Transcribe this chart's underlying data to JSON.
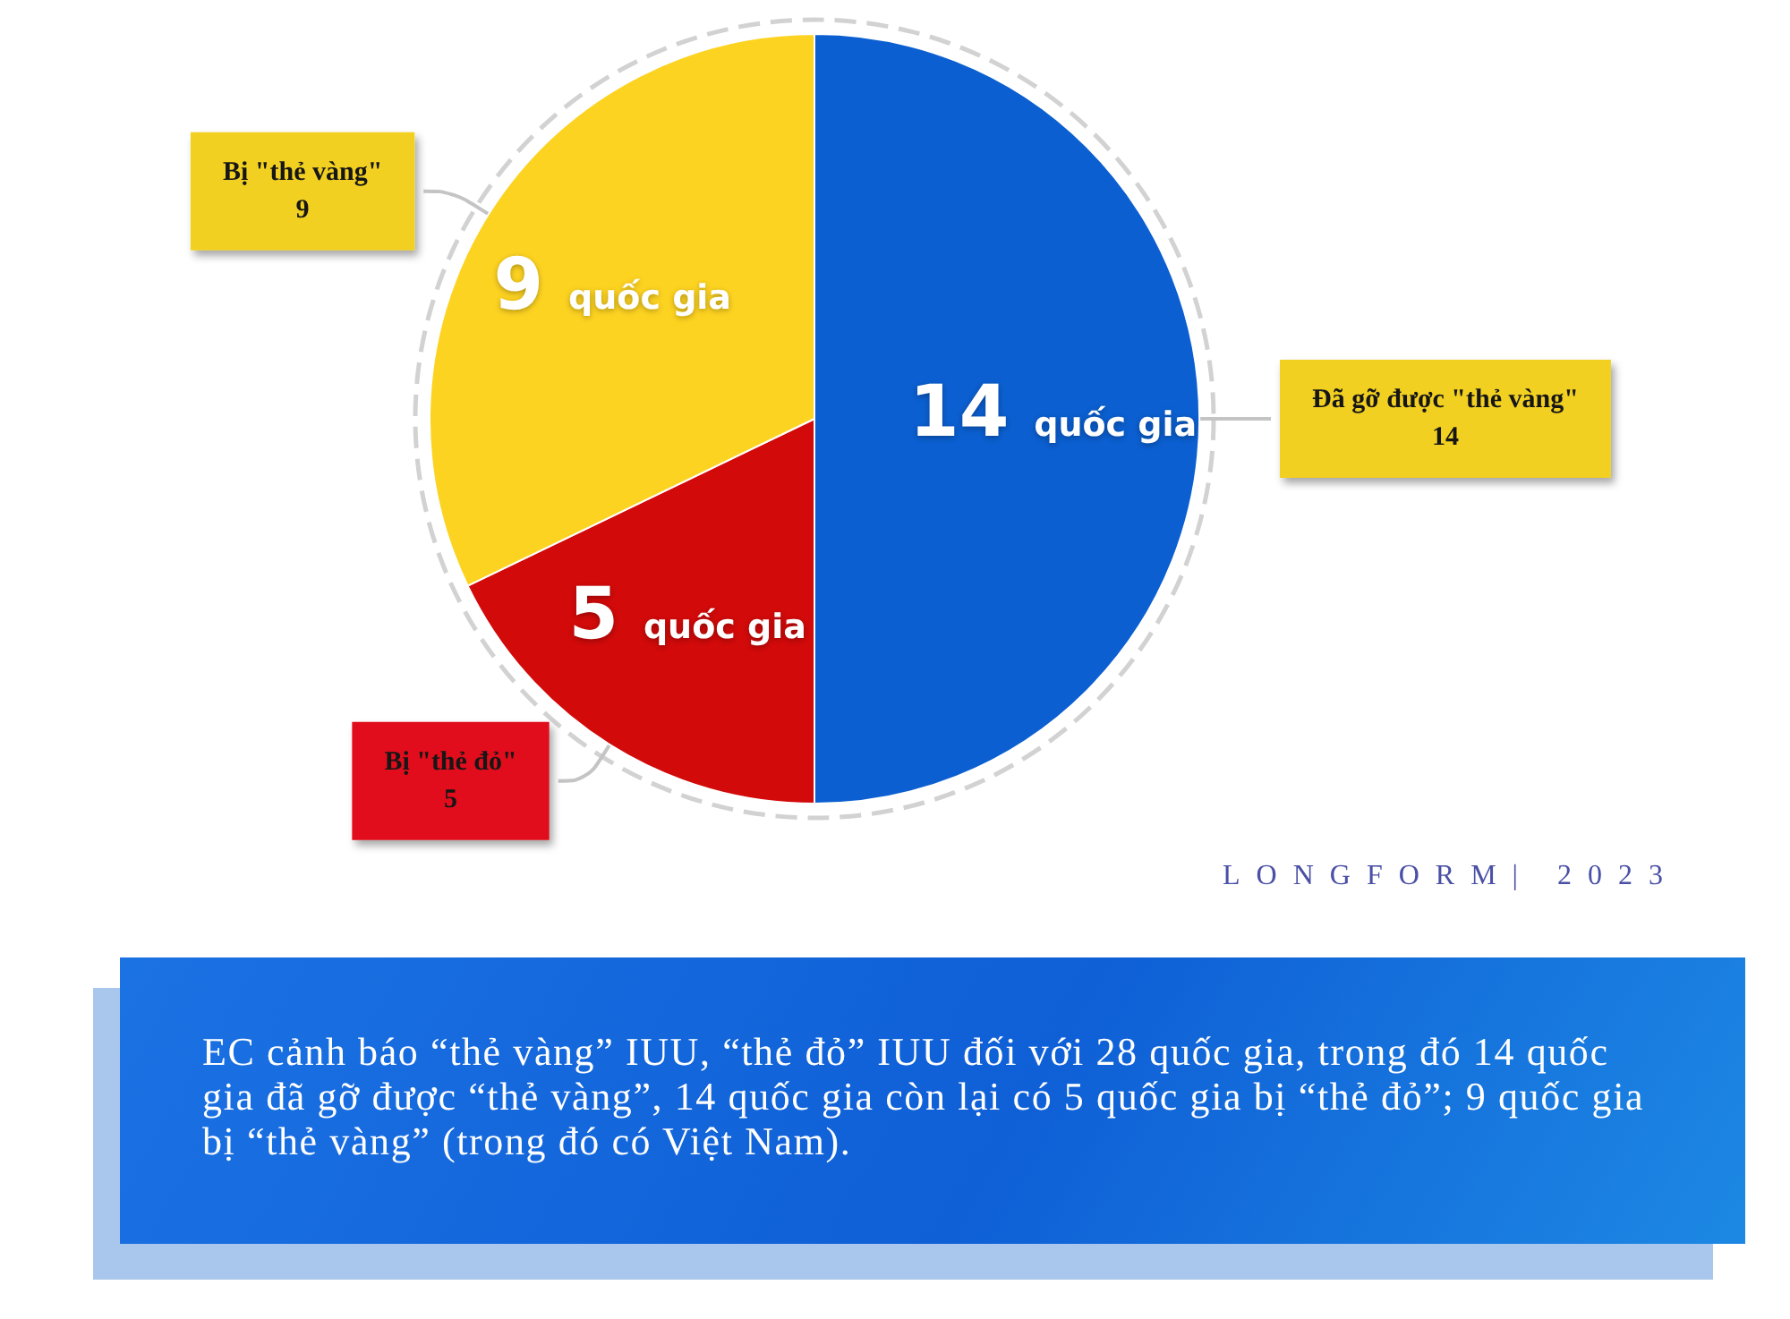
{
  "chart_data": {
    "type": "pie",
    "categories": [
      "Đã gỡ được \"thẻ vàng\"",
      "Bị \"thẻ đỏ\"",
      "Bị \"thẻ vàng\""
    ],
    "values": [
      14,
      5,
      9
    ],
    "colors": [
      "#0b5fd0",
      "#d20a0a",
      "#fdd321"
    ],
    "data_labels": true,
    "annotations": [
      {
        "text": "14 quốc gia",
        "x": "Đã gỡ được \"thẻ vàng\""
      },
      {
        "text": "5 quốc gia",
        "x": "Bị \"thẻ đỏ\""
      },
      {
        "text": "9 quốc gia",
        "x": "Bị \"thẻ vàng\""
      },
      "LONGFORM| 2023",
      "EC cảnh báo “thẻ vàng” IUU, “thẻ đỏ” IUU đối với 28 quốc gia, trong đó 14 quốc gia đã gỡ được “thẻ vàng”, 14 quốc gia còn lại có 5 quốc gia bị “thẻ đỏ”; 9 quốc gia bị “thẻ vàng” (trong đó có Việt Nam)."
    ]
  }
}
